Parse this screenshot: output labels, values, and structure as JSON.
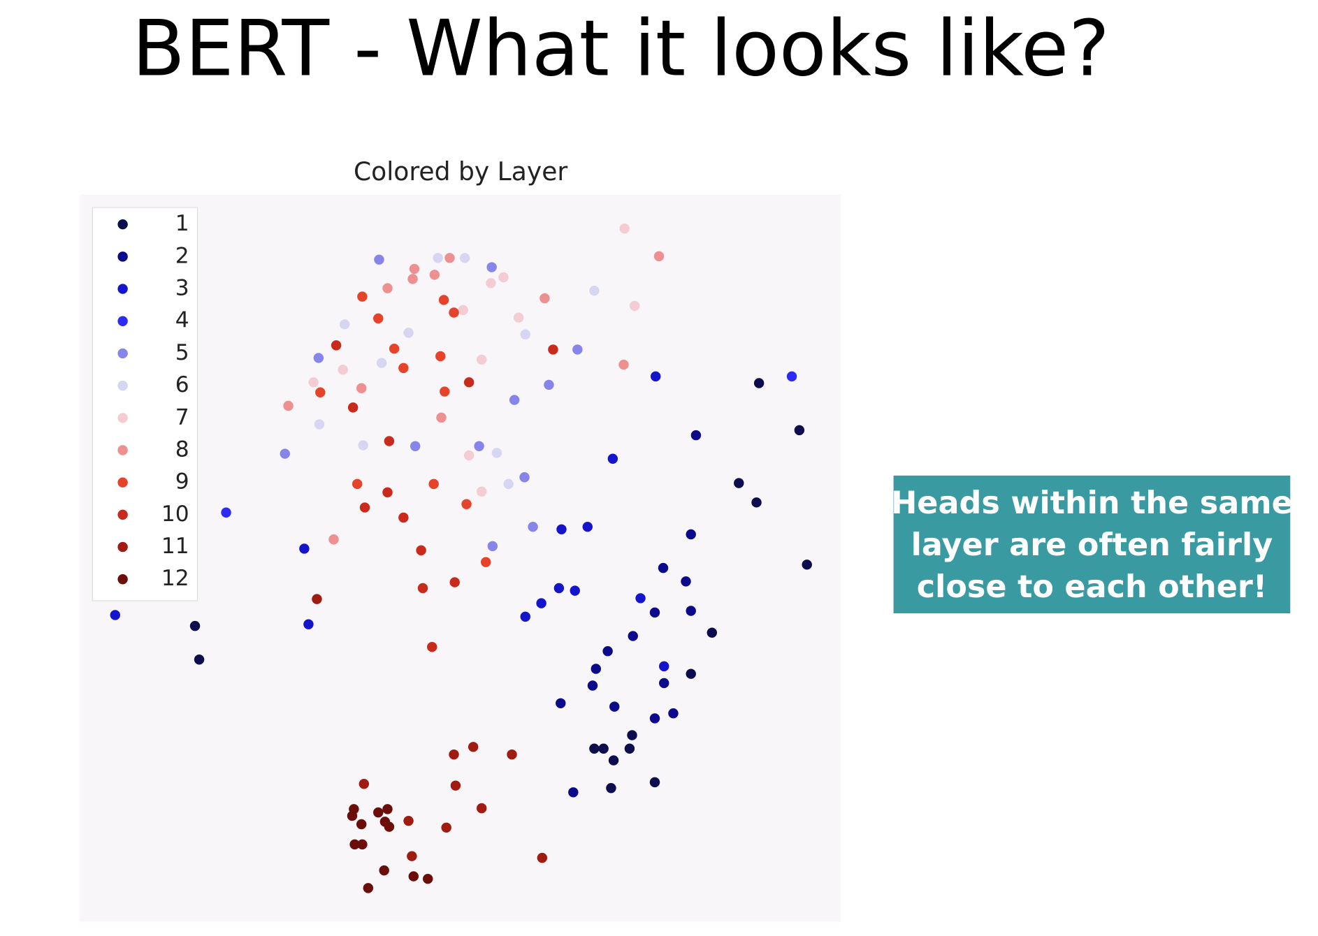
{
  "slide": {
    "title": "BERT - What it looks like?",
    "callout": [
      "Heads within the same",
      "layer are often fairly",
      "close to each other!"
    ]
  },
  "chart_data": {
    "type": "scatter",
    "title": "Colored by Layer",
    "xlim": [
      95,
      1000
    ],
    "ylim": [
      1097,
      232
    ],
    "legend": "upper left",
    "series": [
      {
        "name": "1",
        "color": "#0c0c4e",
        "x": [
          903,
          951,
          879,
          900,
          960,
          847,
          822,
          232,
          237,
          707,
          718,
          730,
          749,
          752,
          727,
          779
        ],
        "y": [
          456,
          512,
          575,
          598,
          672,
          753,
          802,
          745,
          785,
          891,
          891,
          905,
          891,
          875,
          938,
          931
        ]
      },
      {
        "name": "2",
        "color": "#0a0a8a",
        "x": [
          828,
          822,
          789,
          816,
          822,
          779,
          753,
          723,
          709,
          705,
          731,
          779,
          801,
          667,
          682,
          790
        ],
        "y": [
          518,
          636,
          676,
          692,
          727,
          729,
          757,
          775,
          796,
          816,
          841,
          855,
          849,
          837,
          943,
          813
        ]
      },
      {
        "name": "3",
        "color": "#1414cc",
        "x": [
          780,
          729,
          668,
          699,
          665,
          684,
          644,
          625,
          762,
          790,
          362,
          367,
          137
        ],
        "y": [
          448,
          546,
          630,
          627,
          700,
          703,
          718,
          734,
          712,
          793,
          653,
          743,
          732
        ]
      },
      {
        "name": "4",
        "color": "#2b2bf5",
        "x": [
          942,
          269
        ],
        "y": [
          448,
          610
        ]
      },
      {
        "name": "5",
        "color": "#8585ea",
        "x": [
          451,
          585,
          379,
          339,
          494,
          570,
          612,
          653,
          687,
          624,
          634,
          586
        ],
        "y": [
          309,
          318,
          426,
          540,
          531,
          531,
          476,
          458,
          416,
          568,
          627,
          650
        ]
      },
      {
        "name": "6",
        "color": "#d6d6f3",
        "x": [
          521,
          553,
          707,
          410,
          486,
          625,
          454,
          380,
          432,
          591,
          605
        ],
        "y": [
          307,
          307,
          346,
          386,
          396,
          398,
          432,
          505,
          530,
          539,
          576
        ]
      },
      {
        "name": "7",
        "color": "#f4ccd4",
        "x": [
          743,
          599,
          584,
          551,
          617,
          755,
          573,
          408,
          373,
          558,
          573
        ],
        "y": [
          272,
          330,
          337,
          369,
          378,
          364,
          428,
          440,
          455,
          542,
          585
        ]
      },
      {
        "name": "8",
        "color": "#ee9090",
        "x": [
          784,
          493,
          517,
          491,
          461,
          535,
          648,
          742,
          430,
          343,
          525,
          397
        ],
        "y": [
          305,
          320,
          327,
          332,
          343,
          307,
          355,
          434,
          462,
          483,
          497,
          642
        ]
      },
      {
        "name": "9",
        "color": "#e6432b",
        "x": [
          431,
          528,
          540,
          450,
          469,
          524,
          480,
          381,
          529,
          425,
          516,
          555,
          578
        ],
        "y": [
          353,
          357,
          372,
          379,
          415,
          424,
          438,
          467,
          466,
          576,
          576,
          600,
          669
        ]
      },
      {
        "name": "10",
        "color": "#c82b1b",
        "x": [
          400,
          658,
          558,
          420,
          463,
          461,
          434,
          480,
          501,
          503,
          541,
          514
        ],
        "y": [
          411,
          416,
          455,
          485,
          525,
          586,
          604,
          616,
          655,
          700,
          693,
          770
        ]
      },
      {
        "name": "11",
        "color": "#a01b10",
        "x": [
          377,
          540,
          563,
          609,
          542,
          433,
          573,
          486,
          531,
          645,
          490
        ],
        "y": [
          713,
          898,
          889,
          898,
          935,
          933,
          962,
          977,
          985,
          1021,
          1019
        ]
      },
      {
        "name": "12",
        "color": "#6b0e0a",
        "x": [
          421,
          419,
          450,
          461,
          430,
          458,
          463,
          422,
          431,
          457,
          492,
          509,
          438
        ],
        "y": [
          963,
          971,
          967,
          963,
          981,
          978,
          984,
          1005,
          1005,
          1036,
          1043,
          1046,
          1057
        ]
      }
    ]
  }
}
